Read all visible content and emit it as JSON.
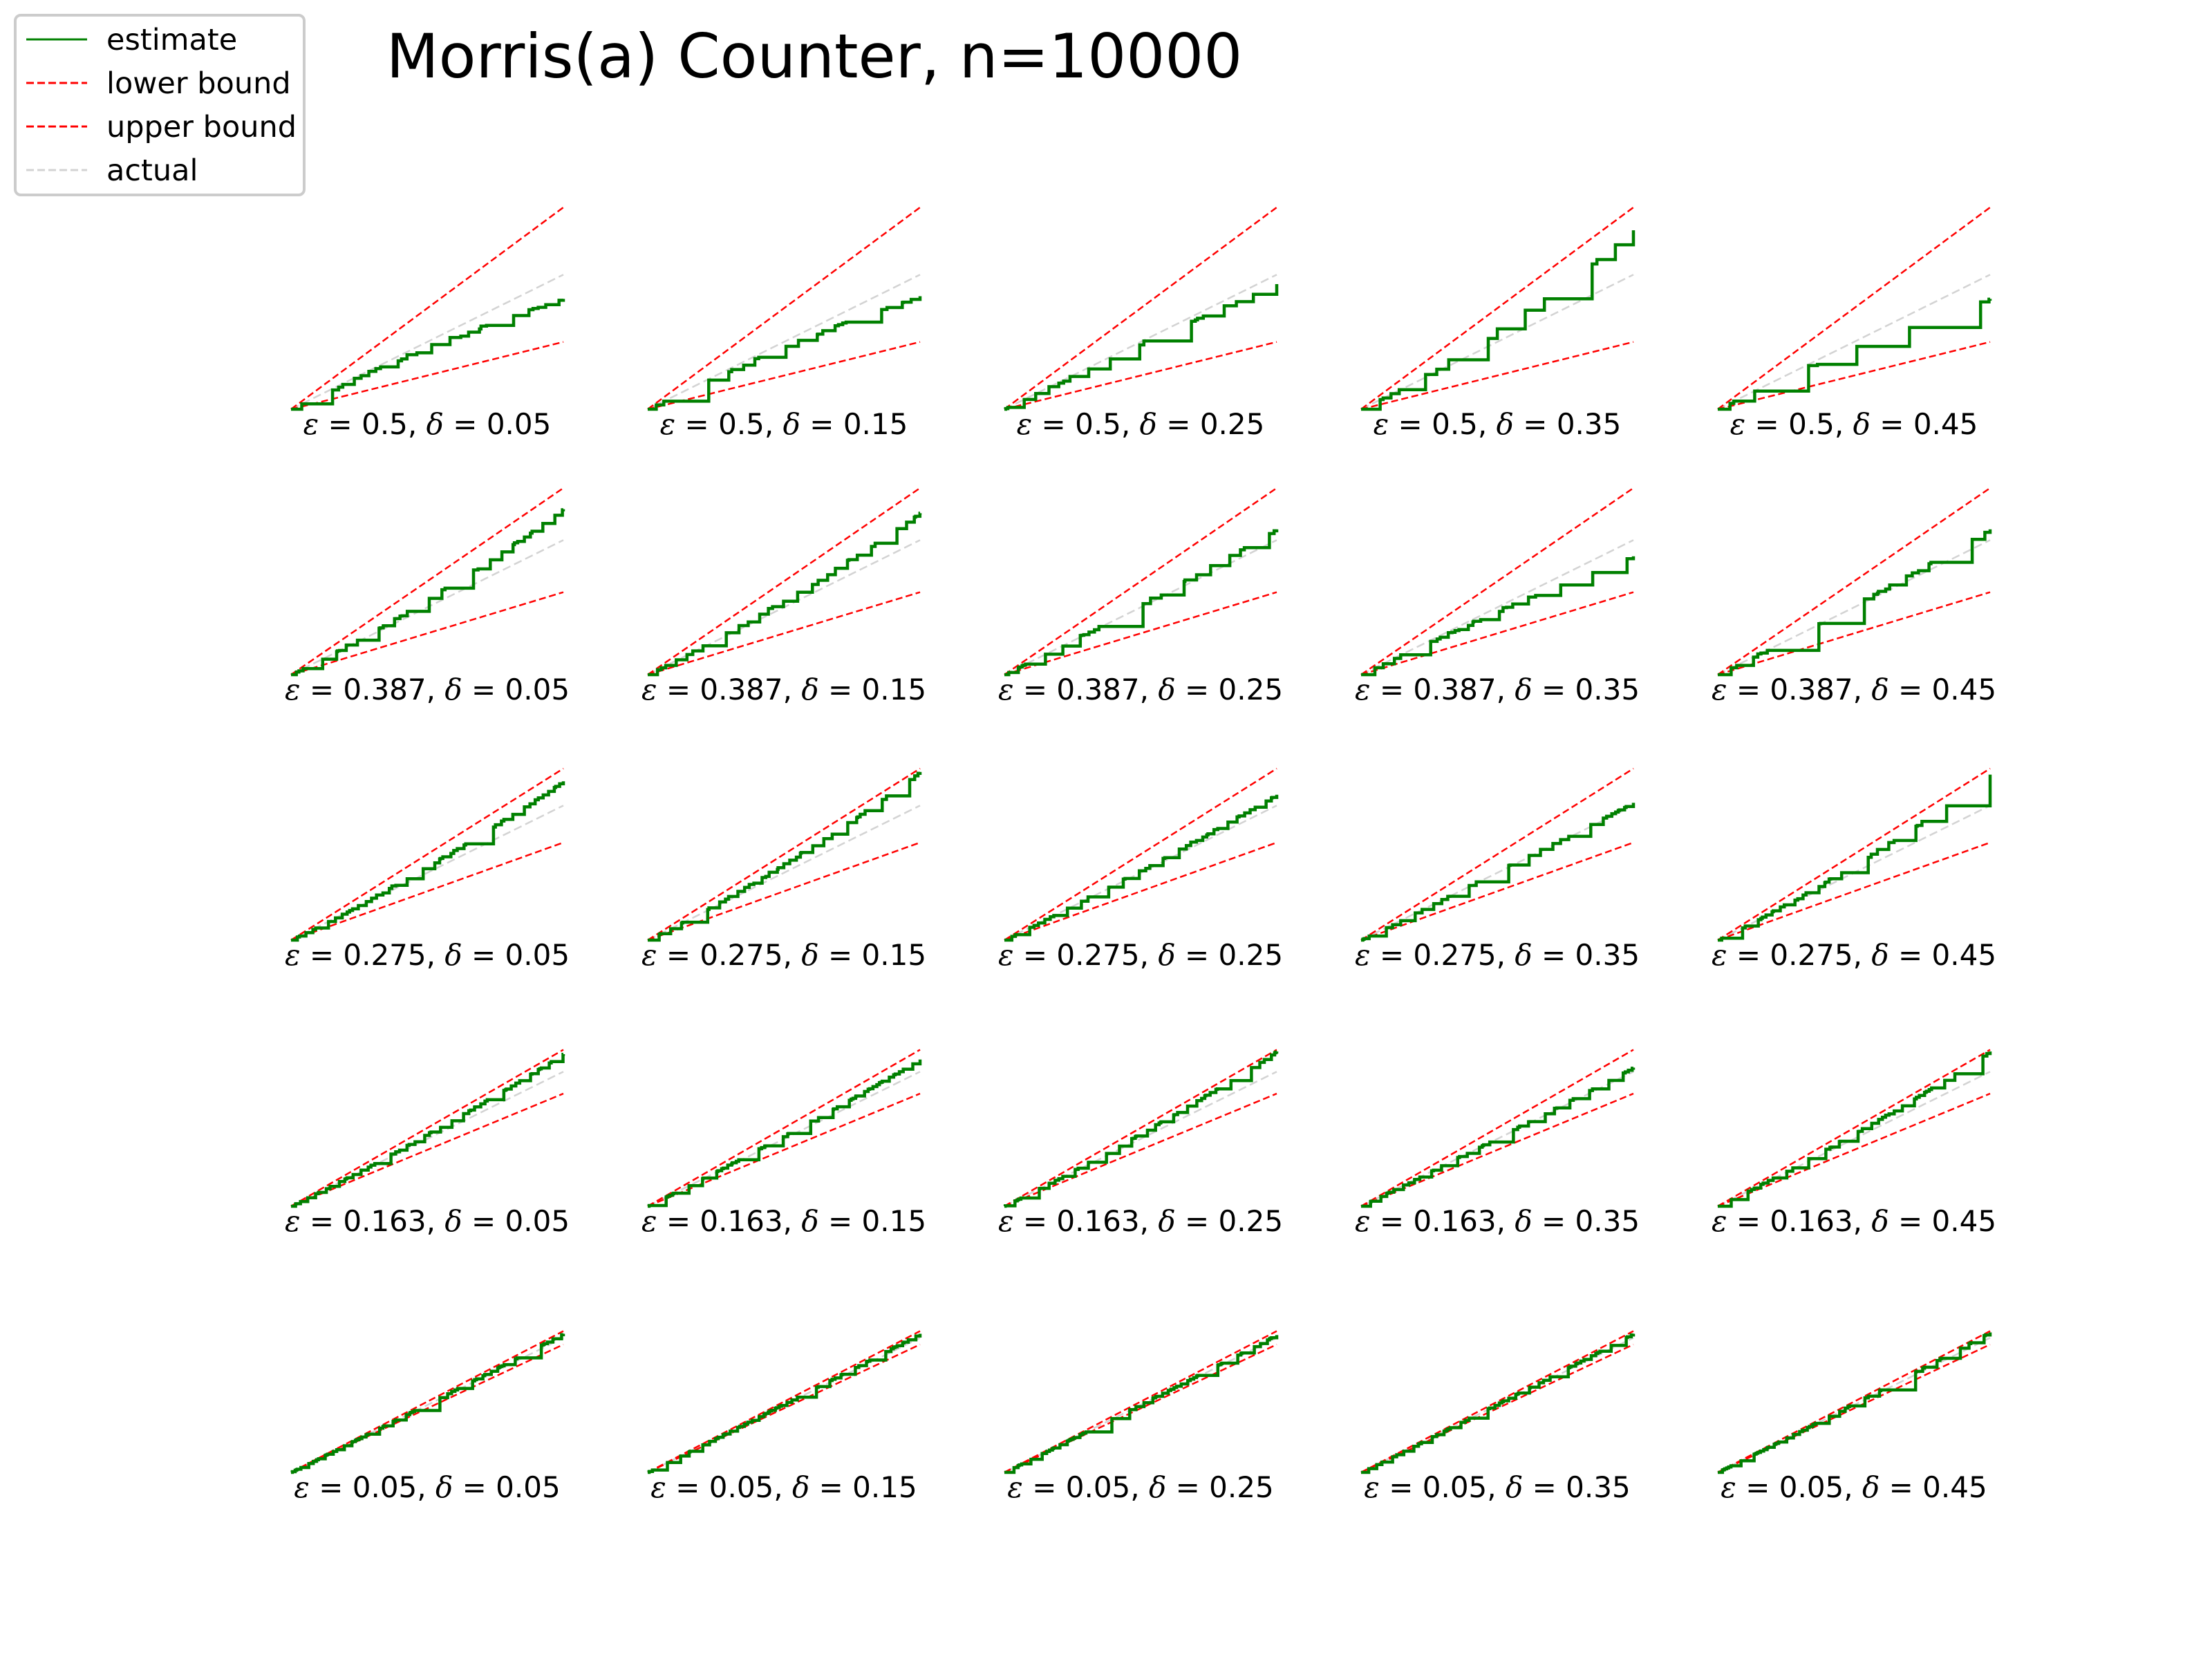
{
  "chart_data": {
    "type": "line",
    "title": "Morris(a) Counter, n=10000",
    "n": 10000,
    "legend": {
      "placement": "top-left",
      "entries": [
        {
          "label": "estimate",
          "color": "#008000",
          "style": "solid"
        },
        {
          "label": "lower bound",
          "color": "#ff0000",
          "style": "dashed"
        },
        {
          "label": "upper bound",
          "color": "#ff0000",
          "style": "dashed"
        },
        {
          "label": "actual",
          "color": "#d3d3d3",
          "style": "dashed"
        }
      ]
    },
    "axes_visible": false,
    "grid": false,
    "x_range": [
      0,
      10000
    ],
    "y_range": [
      0,
      15000
    ],
    "rows": [
      {
        "epsilon": "0.5"
      },
      {
        "epsilon": "0.387"
      },
      {
        "epsilon": "0.275"
      },
      {
        "epsilon": "0.163"
      },
      {
        "epsilon": "0.05"
      }
    ],
    "cols": [
      {
        "delta": "0.05"
      },
      {
        "delta": "0.15"
      },
      {
        "delta": "0.25"
      },
      {
        "delta": "0.35"
      },
      {
        "delta": "0.45"
      }
    ],
    "epsilon_symbol": "ε",
    "delta_symbol": "δ",
    "eq": " = ",
    "sep": ", ",
    "actual": {
      "x": [
        0,
        10000
      ],
      "y": [
        0,
        10000
      ]
    },
    "lower_bound_factor_by_row": [
      0.5,
      0.613,
      0.725,
      0.837,
      0.95
    ],
    "upper_bound_factor_by_row": [
      1.5,
      1.387,
      1.275,
      1.163,
      1.05
    ],
    "estimate_final_ratio": [
      [
        0.82,
        0.84,
        0.93,
        1.33,
        0.82
      ],
      [
        1.23,
        1.2,
        1.08,
        0.88,
        1.08
      ],
      [
        1.18,
        1.25,
        1.08,
        1.02,
        1.23
      ],
      [
        1.13,
        1.09,
        1.15,
        1.03,
        1.15
      ],
      [
        1.03,
        1.03,
        1.02,
        1.03,
        1.04
      ]
    ],
    "colors": {
      "estimate": "#008000",
      "bound": "#ff0000",
      "actual": "#d3d3d3"
    }
  }
}
